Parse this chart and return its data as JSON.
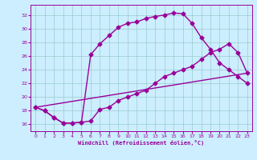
{
  "xlabel": "Windchill (Refroidissement éolien,°C)",
  "bg_color": "#cceeff",
  "line_color": "#990099",
  "grid_color": "#99cccc",
  "x_ticks": [
    0,
    1,
    2,
    3,
    4,
    5,
    6,
    7,
    8,
    9,
    10,
    11,
    12,
    13,
    14,
    15,
    16,
    17,
    18,
    19,
    20,
    21,
    22,
    23
  ],
  "y_ticks": [
    16,
    18,
    20,
    22,
    24,
    26,
    28,
    30,
    32
  ],
  "xlim": [
    -0.5,
    23.5
  ],
  "ylim": [
    15.0,
    33.5
  ],
  "line1_x": [
    0,
    1,
    2,
    3,
    4,
    5,
    6,
    7,
    8,
    9,
    10,
    11,
    12,
    13,
    14,
    15,
    16,
    17,
    18,
    19,
    20,
    21,
    22,
    23
  ],
  "line1_y": [
    18.5,
    18.0,
    17.0,
    16.2,
    16.2,
    16.3,
    26.2,
    27.8,
    29.0,
    30.2,
    30.8,
    31.0,
    31.5,
    31.8,
    32.0,
    32.3,
    32.2,
    30.8,
    28.7,
    27.0,
    25.0,
    24.0,
    23.0,
    22.0
  ],
  "line2_x": [
    0,
    1,
    2,
    3,
    4,
    5,
    6,
    7,
    8,
    9,
    10,
    11,
    12,
    13,
    14,
    15,
    16,
    17,
    18,
    19,
    20,
    21,
    22,
    23
  ],
  "line2_y": [
    18.5,
    18.0,
    17.0,
    16.2,
    16.2,
    16.3,
    16.5,
    18.2,
    18.5,
    19.5,
    20.0,
    20.5,
    21.0,
    22.0,
    23.0,
    23.5,
    24.0,
    24.5,
    25.5,
    26.5,
    27.0,
    27.8,
    26.5,
    23.5
  ],
  "line3_x": [
    0,
    23
  ],
  "line3_y": [
    18.5,
    23.5
  ],
  "marker": "D",
  "marker_size": 2.5,
  "line_width": 1.0
}
